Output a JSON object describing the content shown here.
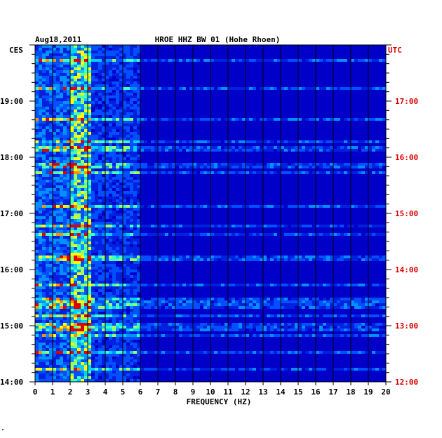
{
  "chart_data": {
    "type": "heatmap",
    "title": "HROE HHZ BW 01 (Hohe Rhoen)",
    "date": "Aug18,2011",
    "left_timezone": "CES",
    "right_timezone": "UTC",
    "xlabel": "FREQUENCY (HZ)",
    "xlim": [
      0,
      20
    ],
    "x_ticks": [
      "0",
      "1",
      "2",
      "3",
      "4",
      "5",
      "6",
      "7",
      "8",
      "9",
      "10",
      "11",
      "12",
      "13",
      "14",
      "15",
      "16",
      "17",
      "18",
      "19",
      "20"
    ],
    "left_time_ticks": [
      "19:00",
      "18:00",
      "17:00",
      "16:00",
      "15:00",
      "14:00"
    ],
    "right_time_ticks": [
      "17:00",
      "16:00",
      "15:00",
      "14:00",
      "13:00",
      "12:00"
    ],
    "colors": {
      "background": "#0000c8",
      "line": "#000000",
      "left_axis_text": "#000000",
      "right_axis_text": "#dd0000"
    },
    "footer_mark": "\""
  }
}
